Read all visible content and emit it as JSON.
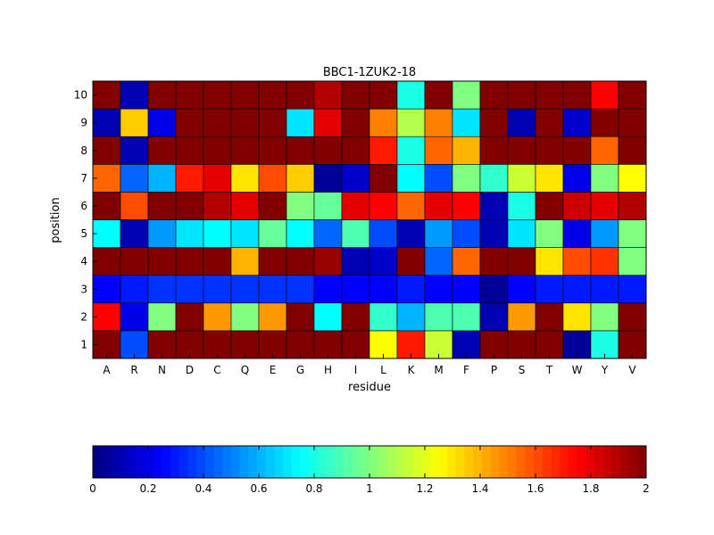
{
  "chart_data": {
    "type": "heatmap",
    "title": "BBC1-1ZUK2-18",
    "xlabel": "residue",
    "ylabel": "position",
    "x_categories": [
      "A",
      "R",
      "N",
      "D",
      "C",
      "Q",
      "E",
      "G",
      "H",
      "I",
      "L",
      "K",
      "M",
      "F",
      "P",
      "S",
      "T",
      "W",
      "Y",
      "V"
    ],
    "y_categories": [
      "1",
      "2",
      "3",
      "4",
      "5",
      "6",
      "7",
      "8",
      "9",
      "10"
    ],
    "value_range": [
      0,
      2
    ],
    "colormap": "jet",
    "colorbar": {
      "orientation": "horizontal",
      "placement": "bottom",
      "ticks": [
        0,
        0.2,
        0.4,
        0.6,
        0.8,
        1,
        1.2,
        1.4,
        1.6,
        1.8,
        2
      ],
      "tick_labels": [
        "0",
        "0.2",
        "0.4",
        "0.6",
        "0.8",
        "1",
        "1.2",
        "1.4",
        "1.6",
        "1.8",
        "2"
      ]
    },
    "values": [
      [
        2,
        0.4,
        2,
        2,
        2,
        2,
        2,
        2,
        2,
        2,
        1.25,
        1.7,
        1.15,
        0.1,
        2,
        2,
        2,
        0.05,
        0.8,
        2
      ],
      [
        1.75,
        0.2,
        1.0,
        2,
        1.45,
        1.0,
        1.45,
        2,
        0.75,
        2,
        0.85,
        0.6,
        0.9,
        0.9,
        0.1,
        1.45,
        2,
        1.3,
        1.0,
        2
      ],
      [
        0.25,
        0.3,
        0.35,
        0.35,
        0.35,
        0.35,
        0.35,
        0.35,
        0.25,
        0.25,
        0.25,
        0.3,
        0.25,
        0.25,
        0.05,
        0.25,
        0.3,
        0.3,
        0.3,
        0.3
      ],
      [
        2,
        2,
        2,
        2,
        2,
        1.4,
        2,
        2,
        1.95,
        0.1,
        0.15,
        2,
        0.45,
        1.55,
        2,
        2,
        1.3,
        1.6,
        1.65,
        1.0
      ],
      [
        0.75,
        0.1,
        0.55,
        0.7,
        0.75,
        0.7,
        0.95,
        0.75,
        0.45,
        0.9,
        0.4,
        0.1,
        0.55,
        0.4,
        0.1,
        0.7,
        1.0,
        0.2,
        0.55,
        1.0
      ],
      [
        2,
        1.6,
        2,
        2,
        1.9,
        1.8,
        2,
        1.0,
        0.95,
        1.8,
        1.75,
        1.55,
        1.8,
        1.75,
        0.1,
        0.8,
        2,
        1.85,
        1.8,
        1.9
      ],
      [
        1.55,
        0.45,
        0.6,
        1.7,
        1.8,
        1.3,
        1.6,
        1.35,
        0.05,
        0.15,
        2,
        0.75,
        0.4,
        1.0,
        0.85,
        1.15,
        1.3,
        0.2,
        1.0,
        1.25
      ],
      [
        2,
        0.1,
        2,
        2,
        2,
        2,
        2,
        2,
        2,
        2,
        1.7,
        0.8,
        1.55,
        1.4,
        2,
        2,
        2,
        2,
        1.55,
        2
      ],
      [
        0.1,
        1.35,
        0.2,
        2,
        2,
        2,
        2,
        0.7,
        1.8,
        2,
        1.5,
        1.1,
        1.5,
        0.7,
        2,
        0.1,
        2,
        0.15,
        2,
        2
      ],
      [
        2,
        0.1,
        2,
        2,
        2,
        2,
        2,
        2,
        1.9,
        2,
        2,
        0.8,
        2,
        1.0,
        2,
        2,
        2,
        2,
        1.75,
        2
      ]
    ]
  }
}
